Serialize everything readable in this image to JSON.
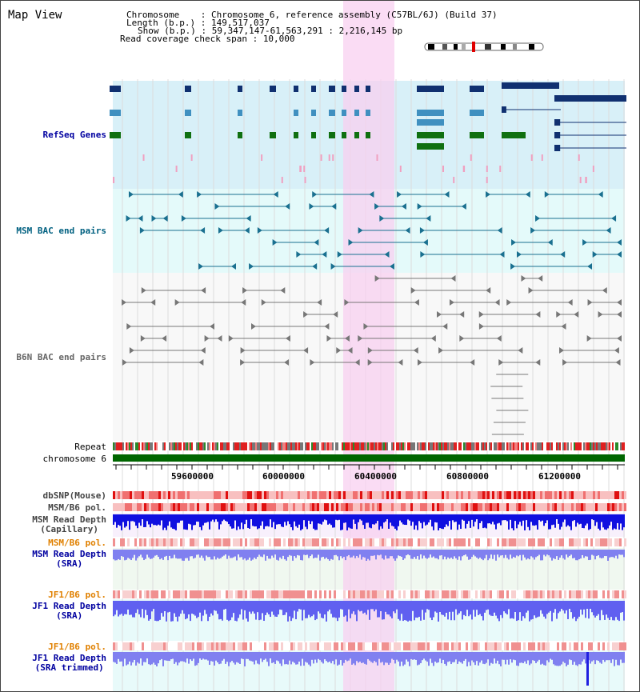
{
  "title": "Map View",
  "info": {
    "chromosome_label": "Chromosome    : ",
    "chromosome_value": "Chromosome 6, reference assembly (C57BL/6J) (Build 37)",
    "length_label": "Length (b.p.) : ",
    "length_value": "149,517,037",
    "show_label": "Show (b.p.) : ",
    "show_value": "59,347,147-61,563,291 : 2,216,145 bp",
    "coverage_label": "Read coverage check span : ",
    "coverage_value": "10,000"
  },
  "tracks": {
    "refseq": "RefSeq Genes",
    "msm_bac": "MSM BAC end pairs",
    "b6n_bac": "B6N BAC end pairs",
    "repeat": "Repeat",
    "chromosome": "chromosome 6",
    "dbsnp": "dbSNP(Mouse)",
    "msm_b6_pol": "MSM/B6 pol.",
    "msm_depth_cap_1": "MSM Read Depth",
    "msm_depth_cap_2": "(Capillary)",
    "msm_b6_pol_sra": "MSM/B6 pol.",
    "msm_depth_sra_1": "MSM Read Depth",
    "msm_depth_sra_2": "(SRA)",
    "jf1_b6_pol": "JF1/B6 pol.",
    "jf1_depth_1": "JF1 Read Depth",
    "jf1_depth_2": "(SRA)",
    "jf1_b6_pol_trim": "JF1/B6 pol.",
    "jf1_depth_trim_1": "JF1 Read Depth",
    "jf1_depth_trim_2": "(SRA trimmed)"
  },
  "axis_ticks": [
    "59600000",
    "60000000",
    "60400000",
    "60800000",
    "61200000"
  ],
  "colors": {
    "refseq_label": "#0000a0",
    "msm_bac_label": "#006080",
    "b6n_bac_label": "#666666",
    "sra_label": "#0000a0",
    "pol_label": "#e08000",
    "highlight": "#f8d0f0"
  }
}
